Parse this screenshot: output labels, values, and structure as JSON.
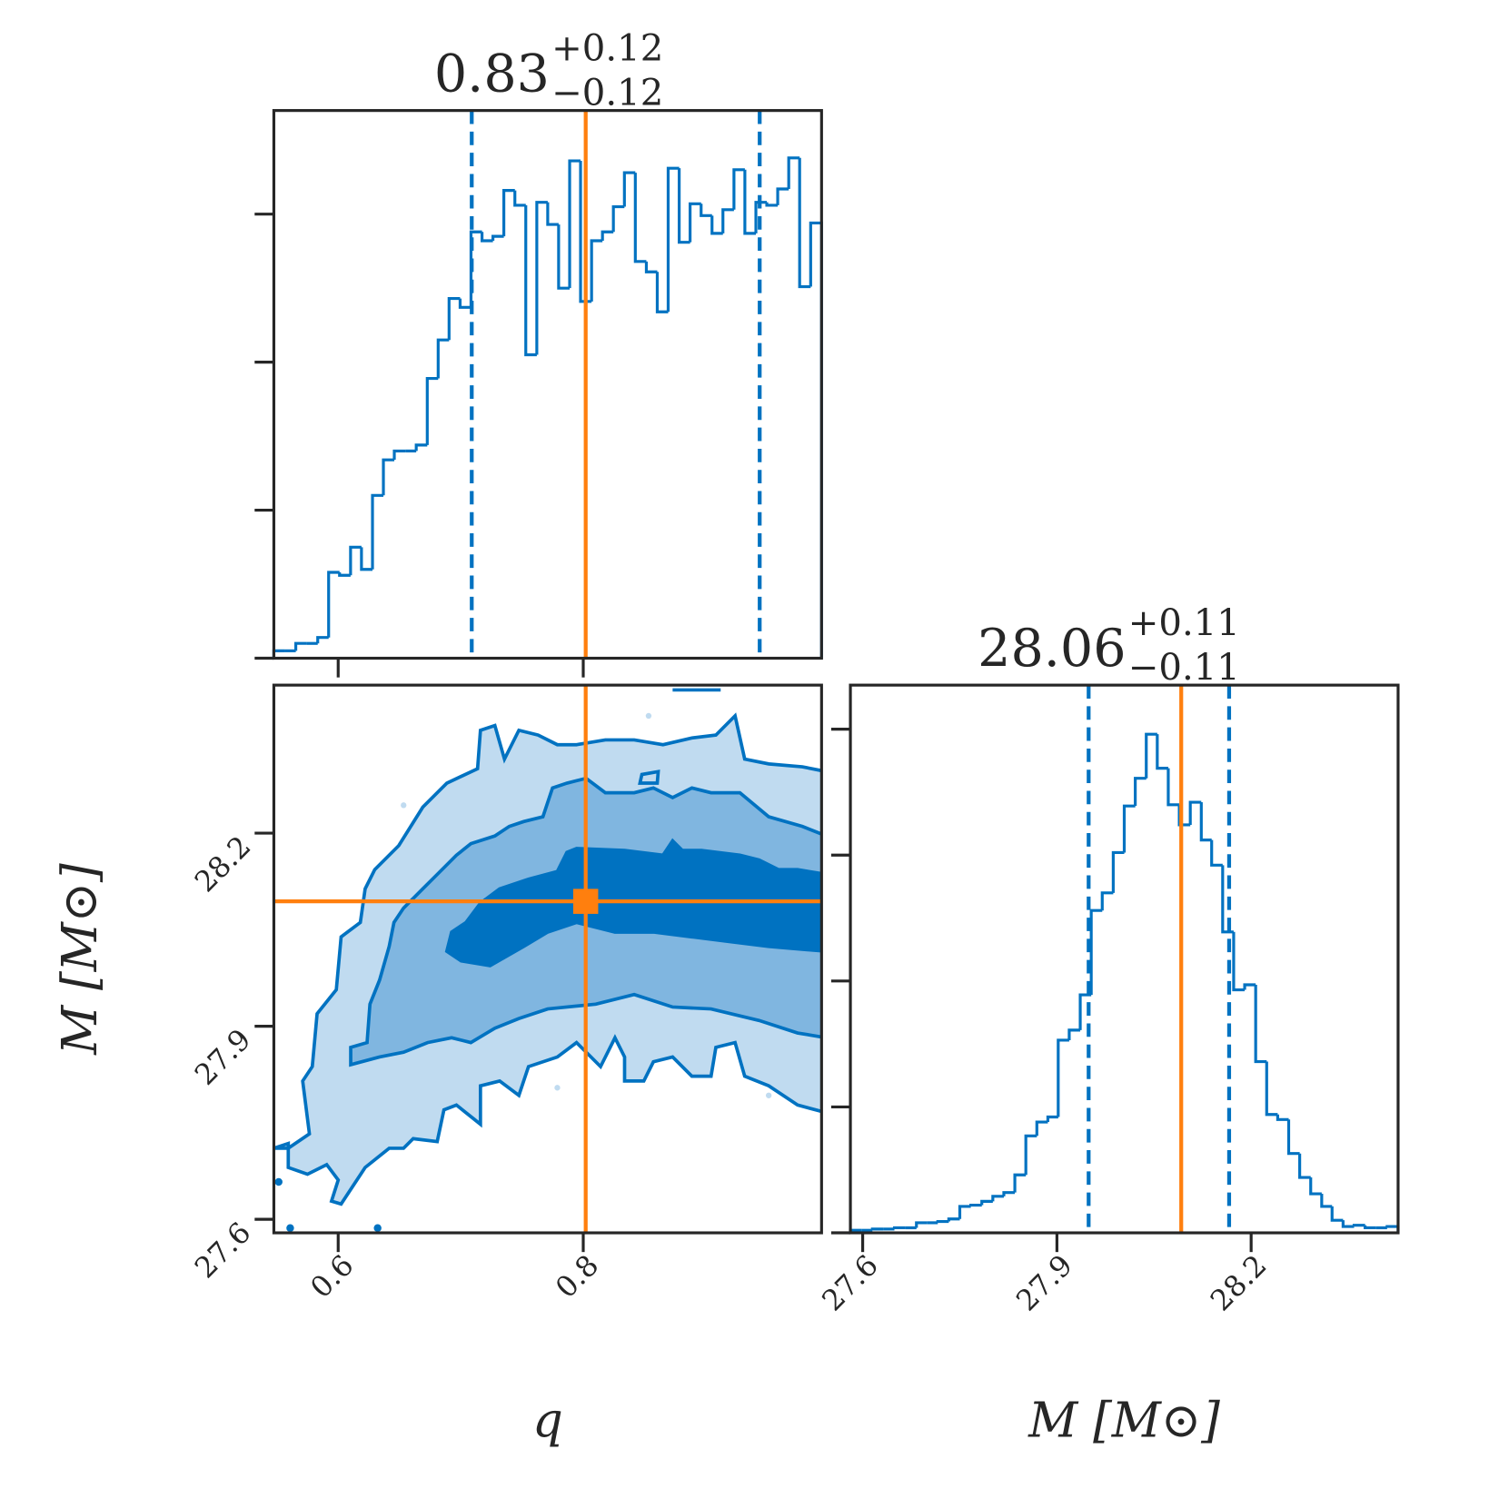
{
  "chart_data": [
    {
      "type": "histogram",
      "title": {
        "median": "0.83",
        "plus": "+0.12",
        "minus": "−0.12"
      },
      "bins": [
        0.5475,
        0.5564,
        0.5654,
        0.5743,
        0.5833,
        0.5922,
        0.6011,
        0.6101,
        0.619,
        0.628,
        0.6369,
        0.6458,
        0.6548,
        0.6637,
        0.6727,
        0.6816,
        0.6905,
        0.6995,
        0.7084,
        0.7174,
        0.7263,
        0.7352,
        0.7442,
        0.7531,
        0.7621,
        0.771,
        0.7799,
        0.7889,
        0.7978,
        0.8068,
        0.8157,
        0.8246,
        0.8336,
        0.8425,
        0.8515,
        0.8604,
        0.8693,
        0.8783,
        0.8872,
        0.8962,
        0.9051,
        0.914,
        0.923,
        0.9319,
        0.9409,
        0.9498,
        0.9587,
        0.9677,
        0.9766,
        0.9856,
        0.9945
      ],
      "values": [
        0.05,
        0.05,
        0.1,
        0.1,
        0.14,
        0.58,
        0.56,
        0.75,
        0.6,
        1.1,
        1.34,
        1.4,
        1.4,
        1.44,
        1.89,
        2.15,
        2.43,
        2.37,
        2.88,
        2.82,
        2.85,
        3.16,
        3.06,
        2.05,
        3.08,
        2.93,
        2.5,
        3.36,
        2.41,
        2.82,
        2.88,
        3.05,
        3.28,
        2.68,
        2.61,
        2.34,
        3.31,
        2.81,
        3.07,
        2.99,
        2.87,
        3.03,
        3.3,
        2.87,
        3.08,
        3.06,
        3.17,
        3.38,
        2.51,
        2.94
      ],
      "color": "#0072c1",
      "xlim": [
        0.5475,
        0.9945
      ],
      "xticks": [
        0.6,
        0.8
      ],
      "ylim": [
        0,
        3.7
      ],
      "yticks": [
        0,
        1,
        2,
        3
      ],
      "quantiles": [
        0.709,
        0.944
      ],
      "truth": 0.802,
      "truth_color": "#ff7f0e"
    },
    {
      "type": "contour",
      "xlabel": "q",
      "ylabel": "M [M⊙]",
      "xlim": [
        0.5475,
        0.9945
      ],
      "xticks": [
        0.6,
        0.8
      ],
      "ylim": [
        27.579,
        28.43
      ],
      "yticks": [
        27.6,
        27.9,
        28.2
      ],
      "truth": [
        0.802,
        28.094
      ],
      "truth_color": "#ff7f0e",
      "colors": [
        "#c0dbf0",
        "#80b6e0",
        "#0072c1"
      ],
      "color": "#0072c1"
    },
    {
      "type": "histogram",
      "title": {
        "median": "28.06",
        "plus": "+0.11",
        "minus": "−0.11"
      },
      "xlabel": "M [M⊙]",
      "bins": [
        27.581,
        27.598,
        27.615,
        27.632,
        27.649,
        27.666,
        27.683,
        27.699,
        27.716,
        27.733,
        27.75,
        27.767,
        27.784,
        27.801,
        27.818,
        27.835,
        27.852,
        27.869,
        27.886,
        27.902,
        27.919,
        27.936,
        27.953,
        27.97,
        27.987,
        28.004,
        28.021,
        28.038,
        28.055,
        28.072,
        28.089,
        28.106,
        28.123,
        28.139,
        28.156,
        28.173,
        28.19,
        28.207,
        28.224,
        28.241,
        28.258,
        28.275,
        28.292,
        28.309,
        28.325,
        28.342,
        28.359,
        28.376,
        28.393,
        28.41,
        28.427
      ],
      "values": [
        0.02,
        0.02,
        0.03,
        0.03,
        0.04,
        0.04,
        0.08,
        0.08,
        0.09,
        0.11,
        0.21,
        0.22,
        0.25,
        0.29,
        0.32,
        0.46,
        0.77,
        0.88,
        0.92,
        1.53,
        1.61,
        1.89,
        2.56,
        2.7,
        3.02,
        3.39,
        3.61,
        3.96,
        3.69,
        3.4,
        3.24,
        3.42,
        3.12,
        2.92,
        2.39,
        1.93,
        1.97,
        1.36,
        0.94,
        0.9,
        0.63,
        0.44,
        0.31,
        0.21,
        0.1,
        0.05,
        0.06,
        0.04,
        0.04,
        0.05
      ],
      "color": "#0072c1",
      "xlim": [
        27.581,
        28.427
      ],
      "xticks": [
        27.6,
        27.9,
        28.2
      ],
      "ylim": [
        0,
        4.35
      ],
      "yticks": [
        0,
        1,
        2,
        3,
        4
      ],
      "quantiles": [
        27.949,
        28.166
      ],
      "truth": 28.092,
      "truth_color": "#ff7f0e"
    }
  ]
}
